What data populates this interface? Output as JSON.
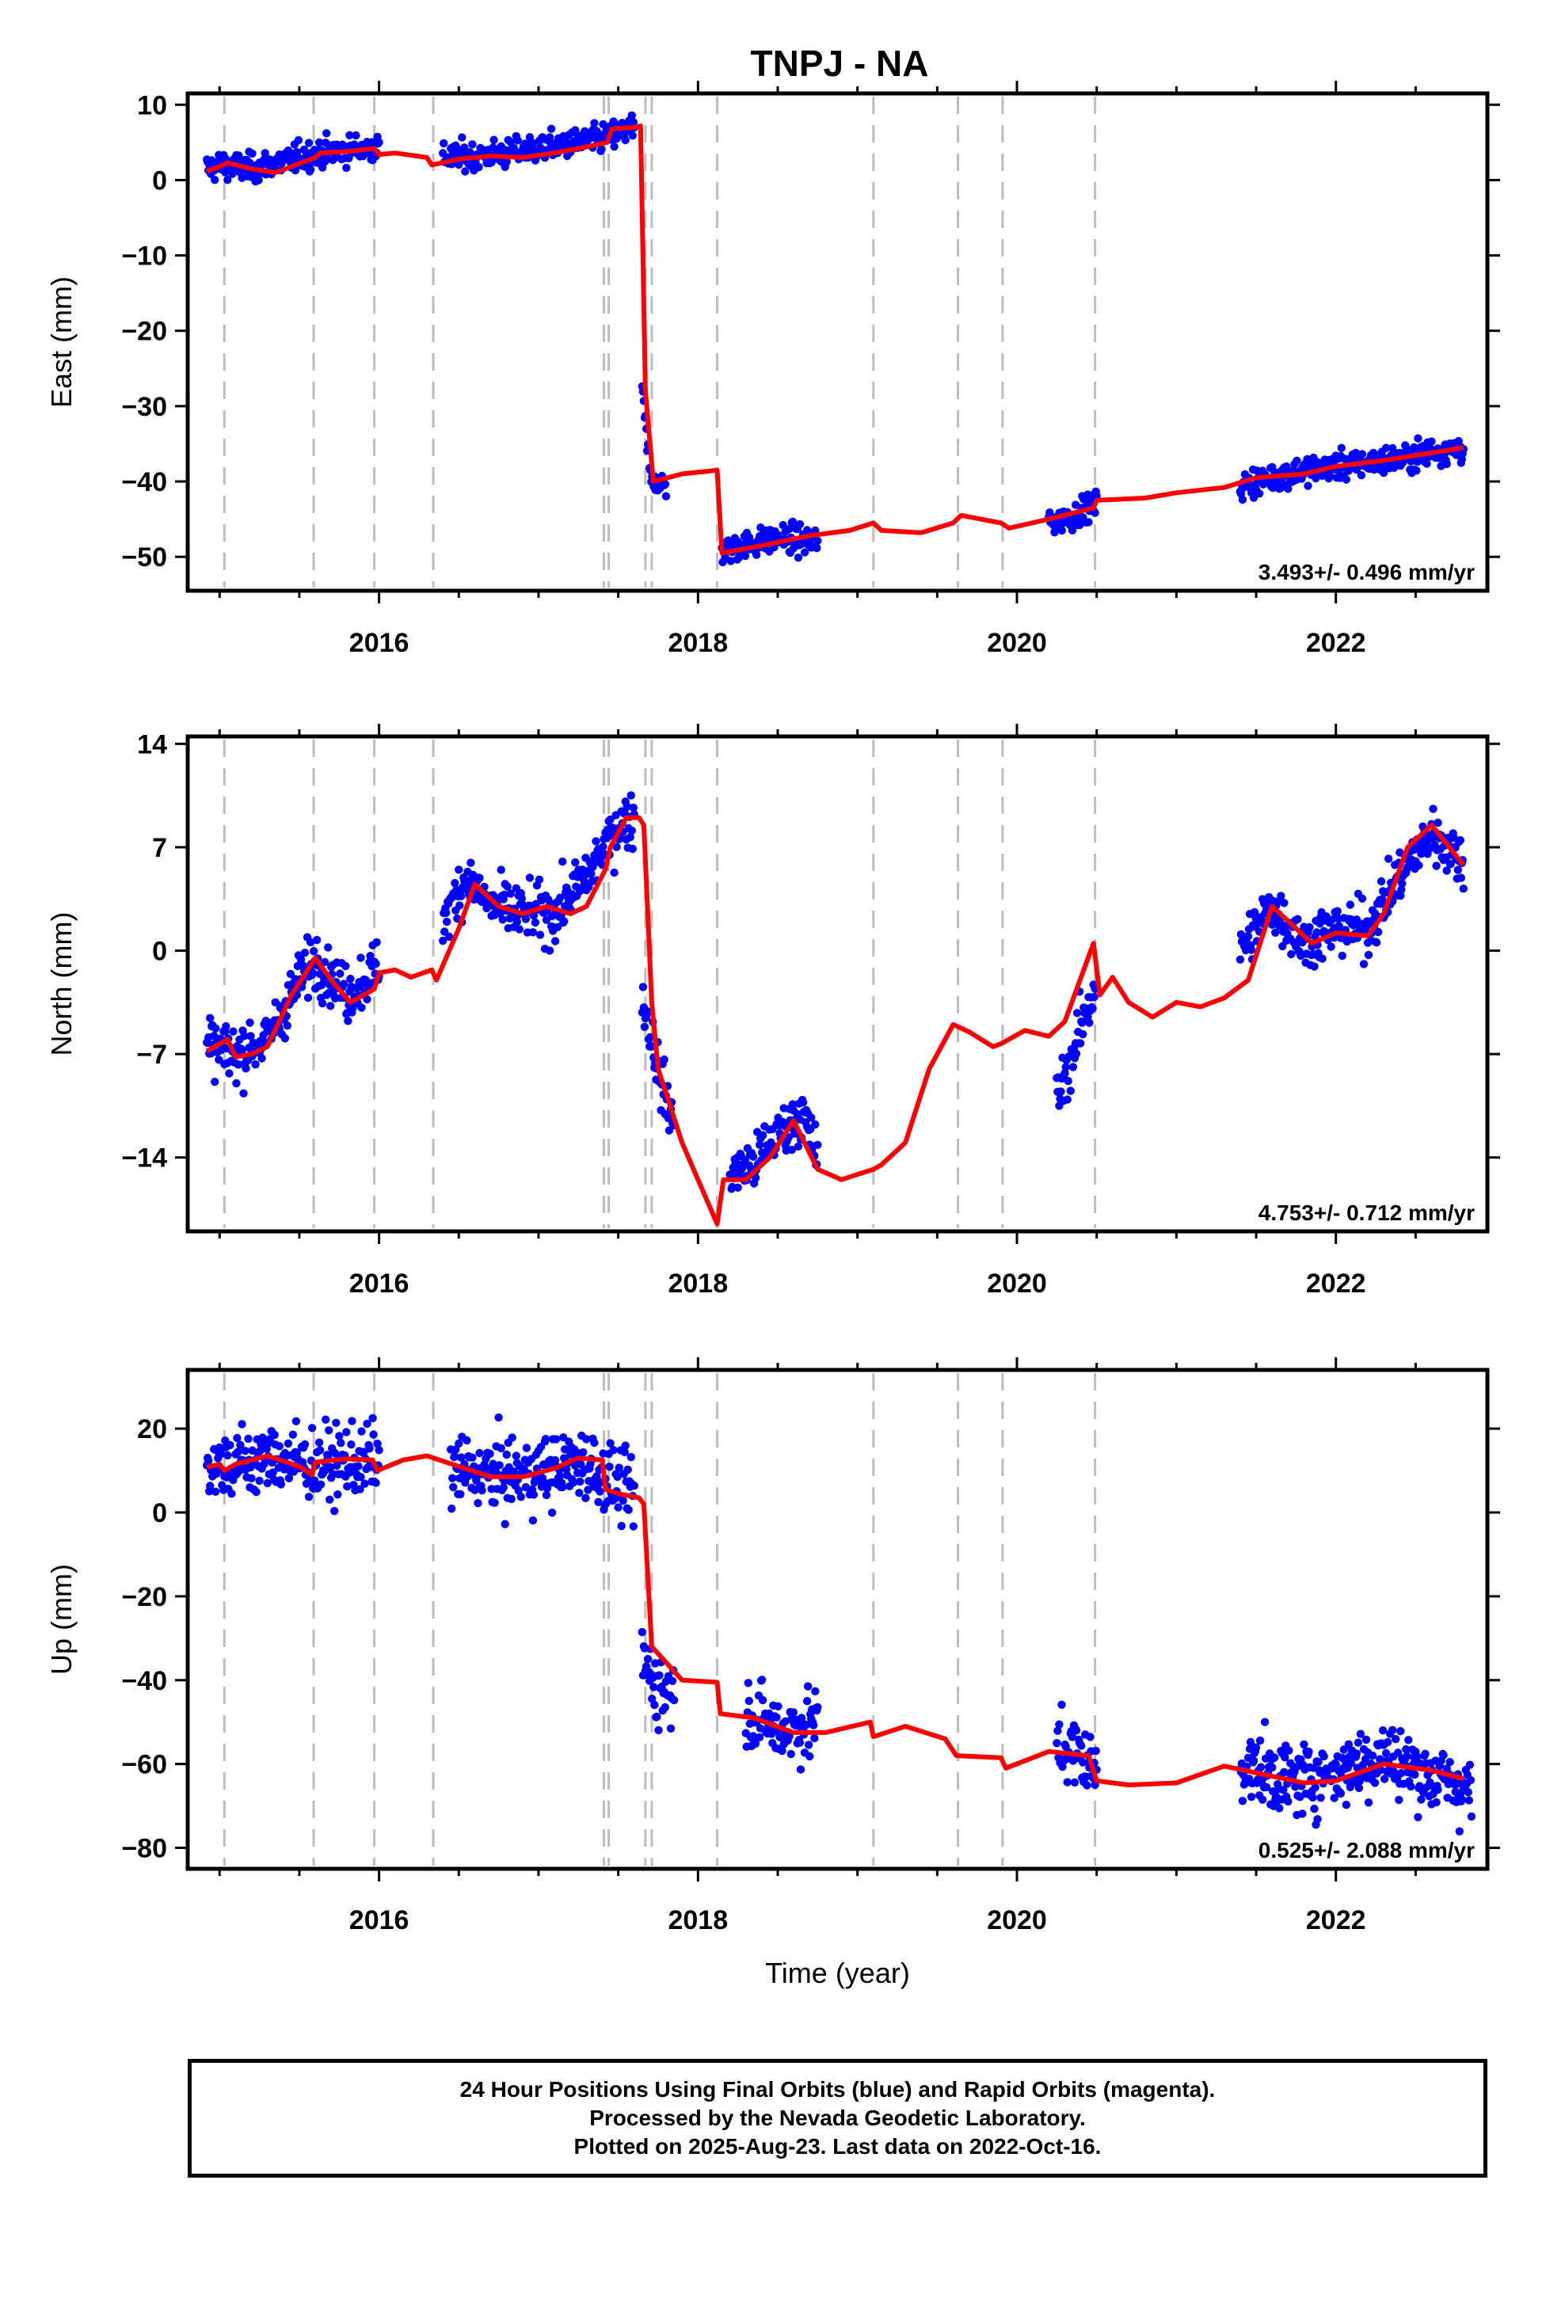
{
  "title": "TNPJ - NA",
  "colors": {
    "points": "#0000ff",
    "model": "#ff0000",
    "breaks": "#bdbdbd",
    "frame": "#000000"
  },
  "chart_data": [
    {
      "type": "scatter",
      "title": "TNPJ - NA",
      "xlabel": "",
      "ylabel": "East (mm)",
      "xlim": [
        2014.8,
        2022.95
      ],
      "ylim": [
        -54.5,
        11.5
      ],
      "x_ticks": [
        2016,
        2018,
        2020,
        2022
      ],
      "y_ticks": [
        10,
        0,
        -10,
        -20,
        -30,
        -40,
        -50
      ],
      "rate_label": "3.493+/- 0.496 mm/yr",
      "series": [
        {
          "values_description": "daily positions (blue)",
          "segments": [
            {
              "x": [
                2014.92,
                2015.0,
                2015.2,
                2015.4,
                2015.6,
                2015.8,
                2016.0
              ],
              "y": [
                1.5,
                2.0,
                1.5,
                2.5,
                3.5,
                4.0,
                4.5
              ]
            },
            {
              "x": [
                2016.4,
                2016.6,
                2016.8,
                2017.0,
                2017.2,
                2017.4,
                2017.6
              ],
              "y": [
                3.0,
                3.2,
                3.5,
                4.2,
                4.8,
                5.5,
                7.0
              ]
            },
            {
              "x": [
                2017.65,
                2017.7,
                2017.8
              ],
              "y": [
                -28,
                -39,
                -41
              ]
            },
            {
              "x": [
                2018.15,
                2018.3,
                2018.5,
                2018.75
              ],
              "y": [
                -49,
                -48.5,
                -47.5,
                -48
              ]
            },
            {
              "x": [
                2020.2,
                2020.35,
                2020.5
              ],
              "y": [
                -45.5,
                -44.5,
                -43
              ]
            },
            {
              "x": [
                2021.4,
                2021.6,
                2021.8,
                2022.0,
                2022.2,
                2022.4,
                2022.6,
                2022.8
              ],
              "y": [
                -40.5,
                -39.5,
                -38.5,
                -38,
                -37.5,
                -37,
                -36,
                -35.5
              ]
            }
          ]
        },
        {
          "values_description": "model (red)",
          "x": [
            2014.92,
            2015.0,
            2015.05,
            2015.2,
            2015.35,
            2015.5,
            2015.6,
            2015.63,
            2015.8,
            2015.97,
            2016.0,
            2016.1,
            2016.3,
            2016.33,
            2016.5,
            2016.7,
            2016.9,
            2017.1,
            2017.3,
            2017.43,
            2017.46,
            2017.6,
            2017.64,
            2017.67,
            2017.72,
            2017.9,
            2018.12,
            2018.15,
            2018.4,
            2018.7,
            2018.95,
            2019.1,
            2019.15,
            2019.4,
            2019.6,
            2019.65,
            2019.9,
            2019.95,
            2020.2,
            2020.48,
            2020.5,
            2020.8,
            2021.0,
            2021.3,
            2021.5,
            2021.8,
            2022.0,
            2022.3,
            2022.6,
            2022.8
          ],
          "y": [
            1.2,
            1.8,
            2.3,
            1.5,
            1.0,
            2.2,
            3.0,
            3.6,
            3.8,
            4.2,
            3.4,
            3.6,
            3.0,
            2.0,
            2.8,
            3.2,
            3.0,
            3.6,
            4.4,
            5.0,
            6.8,
            7.0,
            7.2,
            -28,
            -40,
            -39,
            -38.5,
            -49.5,
            -48.5,
            -47.2,
            -46.5,
            -45.5,
            -46.5,
            -46.8,
            -45.5,
            -44.5,
            -45.5,
            -46.2,
            -45,
            -43.5,
            -42.5,
            -42.2,
            -41.5,
            -40.8,
            -39.5,
            -39,
            -38,
            -37.2,
            -36.2,
            -35.5
          ]
        }
      ],
      "break_lines_x": [
        2015.03,
        2015.59,
        2015.97,
        2016.34,
        2017.41,
        2017.44,
        2017.67,
        2017.71,
        2018.12,
        2019.1,
        2019.63,
        2019.91,
        2020.49
      ]
    },
    {
      "type": "scatter",
      "xlabel": "",
      "ylabel": "North (mm)",
      "xlim": [
        2014.8,
        2022.95
      ],
      "ylim": [
        -19,
        14.5
      ],
      "x_ticks": [
        2016,
        2018,
        2020,
        2022
      ],
      "y_ticks": [
        14,
        7,
        0,
        -7,
        -14
      ],
      "rate_label": "4.753+/- 0.712 mm/yr",
      "series": [
        {
          "values_description": "daily positions (blue)",
          "segments": [
            {
              "x": [
                2014.92,
                2015.1,
                2015.3,
                2015.5,
                2015.6,
                2015.8,
                2016.0
              ],
              "y": [
                -6.5,
                -7.0,
                -6.0,
                -2.0,
                -0.5,
                -3.0,
                -1.0
              ]
            },
            {
              "x": [
                2016.4,
                2016.55,
                2016.7,
                2016.9,
                2017.1,
                2017.3,
                2017.5,
                2017.6
              ],
              "y": [
                2.0,
                5.0,
                3.0,
                2.5,
                2.5,
                5.0,
                8.5,
                9.0
              ]
            },
            {
              "x": [
                2017.65,
                2017.75,
                2017.85
              ],
              "y": [
                -3,
                -8,
                -12
              ]
            },
            {
              "x": [
                2018.2,
                2018.35,
                2018.5,
                2018.65,
                2018.75
              ],
              "y": [
                -15,
                -14.5,
                -12.5,
                -11,
                -14
              ]
            },
            {
              "x": [
                2020.25,
                2020.35,
                2020.5
              ],
              "y": [
                -10,
                -7,
                -2
              ]
            },
            {
              "x": [
                2021.4,
                2021.6,
                2021.8,
                2022.0,
                2022.2,
                2022.4,
                2022.6,
                2022.8
              ],
              "y": [
                0,
                3,
                0.5,
                1.5,
                1.5,
                5,
                8,
                6
              ]
            }
          ]
        },
        {
          "values_description": "model (red)",
          "x": [
            2014.92,
            2015.0,
            2015.05,
            2015.1,
            2015.2,
            2015.3,
            2015.45,
            2015.6,
            2015.7,
            2015.82,
            2015.97,
            2016.0,
            2016.1,
            2016.2,
            2016.33,
            2016.36,
            2016.5,
            2016.6,
            2016.75,
            2016.9,
            2017.05,
            2017.2,
            2017.3,
            2017.42,
            2017.45,
            2017.55,
            2017.63,
            2017.66,
            2017.71,
            2017.75,
            2017.9,
            2018.12,
            2018.16,
            2018.3,
            2018.45,
            2018.6,
            2018.75,
            2018.9,
            2019.1,
            2019.15,
            2019.3,
            2019.45,
            2019.6,
            2019.7,
            2019.85,
            2019.9,
            2020.05,
            2020.2,
            2020.3,
            2020.48,
            2020.52,
            2020.6,
            2020.7,
            2020.85,
            2021.0,
            2021.15,
            2021.3,
            2021.45,
            2021.6,
            2021.75,
            2021.85,
            2022.0,
            2022.2,
            2022.3,
            2022.45,
            2022.6,
            2022.8
          ],
          "y": [
            -6.8,
            -6.3,
            -6.0,
            -7.2,
            -7.0,
            -6.5,
            -3.0,
            -0.5,
            -2.0,
            -3.5,
            -2.6,
            -1.5,
            -1.3,
            -1.8,
            -1.3,
            -2.0,
            1.5,
            4.5,
            3.0,
            2.5,
            3.0,
            2.5,
            3.0,
            5.5,
            7.0,
            9.0,
            9.0,
            8.5,
            -3.5,
            -8.0,
            -13.0,
            -18.5,
            -15.5,
            -15.5,
            -14.0,
            -11.5,
            -14.8,
            -15.5,
            -14.8,
            -14.5,
            -13.0,
            -8.0,
            -5.0,
            -5.5,
            -6.5,
            -6.3,
            -5.4,
            -5.8,
            -4.8,
            0.5,
            -3.0,
            -1.8,
            -3.5,
            -4.5,
            -3.5,
            -3.8,
            -3.2,
            -2.0,
            3.0,
            1.5,
            0.5,
            1.2,
            1.0,
            2.5,
            7.0,
            8.5,
            5.8
          ]
        }
      ],
      "break_lines_x": [
        2015.03,
        2015.59,
        2015.97,
        2016.34,
        2017.41,
        2017.44,
        2017.67,
        2017.71,
        2018.12,
        2019.1,
        2019.63,
        2019.91,
        2020.49
      ]
    },
    {
      "type": "scatter",
      "xlabel": "Time (year)",
      "ylabel": "Up (mm)",
      "xlim": [
        2014.8,
        2022.95
      ],
      "ylim": [
        -85,
        34
      ],
      "x_ticks": [
        2016,
        2018,
        2020,
        2022
      ],
      "y_ticks": [
        20,
        0,
        -20,
        -40,
        -60,
        -80
      ],
      "rate_label": "0.525+/- 2.088 mm/yr",
      "series": [
        {
          "values_description": "daily positions (blue)",
          "segments": [
            {
              "x": [
                2014.92,
                2015.2,
                2015.4,
                2015.6,
                2015.8,
                2016.0
              ],
              "y": [
                11,
                12,
                13,
                11,
                12,
                12
              ]
            },
            {
              "x": [
                2016.45,
                2016.7,
                2016.9,
                2017.1,
                2017.3,
                2017.5,
                2017.6
              ],
              "y": [
                10,
                9,
                9,
                10,
                12,
                6,
                4
              ]
            },
            {
              "x": [
                2017.65,
                2017.75,
                2017.85
              ],
              "y": [
                -35,
                -42,
                -43
              ]
            },
            {
              "x": [
                2018.3,
                2018.5,
                2018.75
              ],
              "y": [
                -47,
                -52,
                -50
              ]
            },
            {
              "x": [
                2020.25,
                2020.4,
                2020.5
              ],
              "y": [
                -55,
                -58,
                -62
              ]
            },
            {
              "x": [
                2021.4,
                2021.7,
                2022.0,
                2022.3,
                2022.6,
                2022.85
              ],
              "y": [
                -60,
                -64,
                -62,
                -58,
                -63,
                -66
              ]
            }
          ]
        },
        {
          "values_description": "model (red)",
          "x": [
            2014.92,
            2015.0,
            2015.03,
            2015.1,
            2015.3,
            2015.5,
            2015.58,
            2015.6,
            2015.8,
            2015.96,
            2015.99,
            2016.15,
            2016.3,
            2016.5,
            2016.7,
            2016.9,
            2017.1,
            2017.25,
            2017.4,
            2017.42,
            2017.5,
            2017.63,
            2017.66,
            2017.71,
            2017.9,
            2018.12,
            2018.14,
            2018.35,
            2018.6,
            2018.8,
            2019.08,
            2019.1,
            2019.3,
            2019.55,
            2019.62,
            2019.9,
            2019.93,
            2020.2,
            2020.45,
            2020.5,
            2020.7,
            2021.0,
            2021.3,
            2021.55,
            2021.8,
            2022.0,
            2022.3,
            2022.6,
            2022.8
          ],
          "y": [
            10.8,
            11.5,
            10,
            11.5,
            13.5,
            11,
            9,
            12,
            12.8,
            12.5,
            10,
            12.5,
            13.5,
            11,
            8.5,
            8.5,
            10.5,
            13,
            12.5,
            5.5,
            4.5,
            3.5,
            2,
            -32,
            -40,
            -40.5,
            -48,
            -49,
            -52.5,
            -52.5,
            -50,
            -53.5,
            -51,
            -54,
            -58,
            -58.5,
            -61,
            -57,
            -58,
            -64,
            -65,
            -64.5,
            -60.5,
            -62.5,
            -64.5,
            -64,
            -60,
            -61.5,
            -63.5
          ]
        }
      ],
      "break_lines_x": [
        2015.03,
        2015.59,
        2015.97,
        2016.34,
        2017.41,
        2017.44,
        2017.67,
        2017.71,
        2018.12,
        2019.1,
        2019.63,
        2019.91,
        2020.49
      ]
    }
  ],
  "footer": {
    "line1": "24 Hour Positions Using Final Orbits (blue) and Rapid Orbits (magenta).",
    "line2": "Processed by the Nevada Geodetic Laboratory.",
    "line3": "Plotted on 2025-Aug-23. Last data on 2022-Oct-16."
  }
}
